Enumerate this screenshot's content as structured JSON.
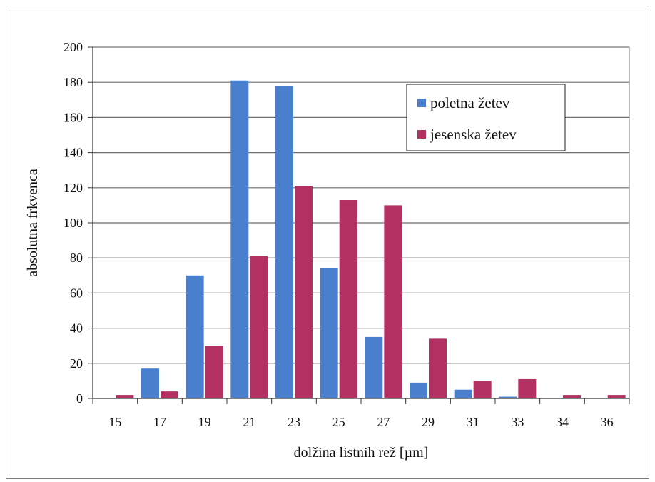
{
  "chart_data": {
    "type": "bar",
    "categories": [
      "15",
      "17",
      "19",
      "21",
      "23",
      "25",
      "27",
      "29",
      "31",
      "33",
      "34",
      "36"
    ],
    "series": [
      {
        "name": "poletna žetev",
        "color": "#4a7fce",
        "values": [
          0,
          17,
          70,
          181,
          178,
          74,
          35,
          9,
          5,
          1,
          0,
          0
        ]
      },
      {
        "name": "jesenska žetev",
        "color": "#b33063",
        "values": [
          2,
          4,
          30,
          81,
          121,
          113,
          110,
          34,
          10,
          11,
          2,
          2
        ]
      }
    ],
    "xlabel": "dolžina listnih rež [µm]",
    "ylabel": "absolutna frkvenca",
    "ylim": [
      0,
      200
    ],
    "yticks": [
      0,
      20,
      40,
      60,
      80,
      100,
      120,
      140,
      160,
      180,
      200
    ],
    "grid": true,
    "legend_position": "top-right"
  }
}
